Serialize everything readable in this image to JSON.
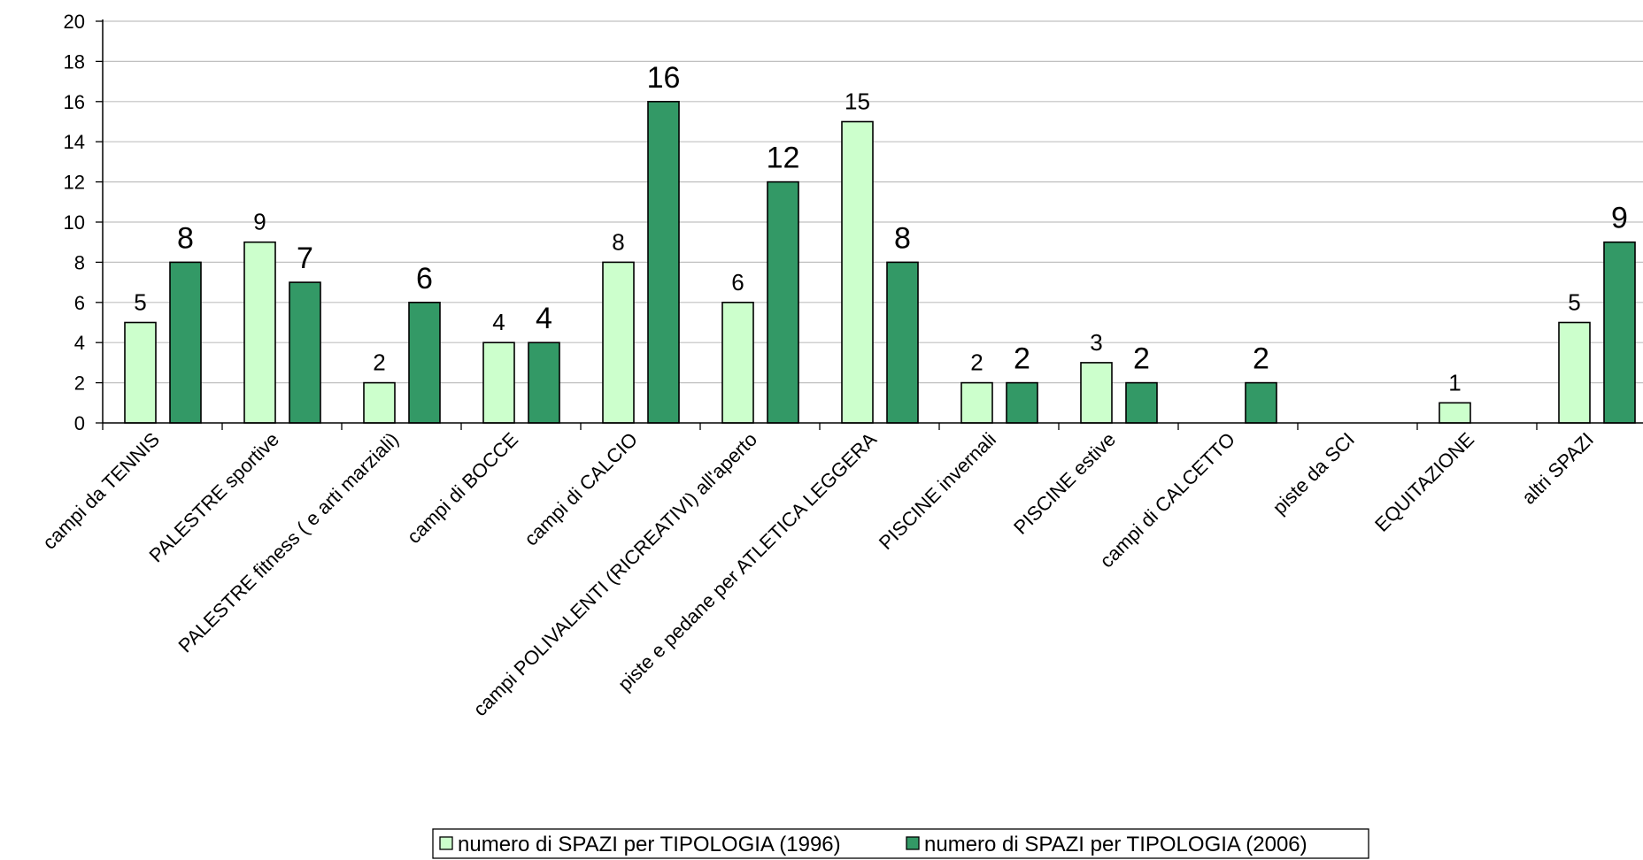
{
  "chart_data": {
    "type": "bar",
    "categories": [
      "campi da TENNIS",
      "PALESTRE sportive",
      "PALESTRE fitness ( e arti marziali)",
      "campi di BOCCE",
      "campi di CALCIO",
      "campi POLIVALENTI (RICREATIVI) all'aperto",
      "piste e pedane per ATLETICA LEGGERA",
      "PISCINE invernali",
      "PISCINE estive",
      "campi di CALCETTO",
      "piste da SCI",
      "EQUITAZIONE",
      "altri SPAZI"
    ],
    "series": [
      {
        "name": "numero di SPAZI per TIPOLOGIA (1996)",
        "values": [
          5,
          9,
          2,
          4,
          8,
          6,
          15,
          2,
          3,
          null,
          null,
          1,
          5
        ],
        "color": "#ccffcc"
      },
      {
        "name": "numero di SPAZI per TIPOLOGIA (2006)",
        "values": [
          8,
          7,
          6,
          4,
          16,
          12,
          8,
          2,
          2,
          2,
          null,
          null,
          9
        ],
        "color": "#339966"
      }
    ],
    "title": "",
    "xlabel": "",
    "ylabel": "",
    "ylim": [
      0,
      20
    ],
    "yticks": [
      "0",
      "2",
      "4",
      "6",
      "8",
      "10",
      "12",
      "14",
      "16",
      "18",
      "20"
    ],
    "grid": true,
    "legend_position": "bottom"
  }
}
